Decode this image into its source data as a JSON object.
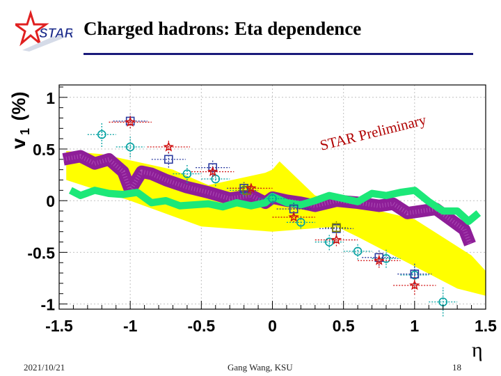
{
  "header": {
    "title": "Charged hadrons: Eta dependence",
    "logo_text": "STAR"
  },
  "footer": {
    "date": "2021/10/21",
    "author": "Gang Wang, KSU",
    "page": "18"
  },
  "colors": {
    "purple_band": "#8e1e98",
    "yellow_band": "#ffff00",
    "green_band": "#1ce878",
    "title_rule": "#1a1a7a"
  },
  "chart_data": {
    "type": "scatter",
    "xlabel": "η",
    "ylabel_main": "v",
    "ylabel_sub": "1",
    "ylabel_unit": "(%)",
    "watermark": "STAR Preliminary",
    "xlim": [
      -1.5,
      1.5
    ],
    "ylim": [
      -1.05,
      1.12
    ],
    "xticks": [
      -1.5,
      -1,
      -0.5,
      0,
      0.5,
      1,
      1.5
    ],
    "xtick_labels": [
      "-1.5",
      "-1",
      "-0.5",
      "0",
      "0.5",
      "1",
      "1.5"
    ],
    "yticks": [
      -1,
      -0.5,
      0,
      0.5,
      1
    ],
    "ytick_labels": [
      "-1",
      "-0.5",
      "0",
      "0.5",
      "1"
    ],
    "bands": [
      {
        "name": "yellow-band",
        "color": "#ffff00",
        "upper": [
          [
            -1.45,
            0.48
          ],
          [
            -1.2,
            0.45
          ],
          [
            -0.7,
            0.3
          ],
          [
            -0.45,
            0.15
          ],
          [
            -0.05,
            0.27
          ],
          [
            0.0,
            0.3
          ],
          [
            0.05,
            0.38
          ],
          [
            0.3,
            0.05
          ],
          [
            1.0,
            -0.18
          ],
          [
            1.4,
            -0.53
          ],
          [
            1.5,
            -0.68
          ]
        ],
        "lower": [
          [
            1.5,
            -0.92
          ],
          [
            1.3,
            -0.85
          ],
          [
            0.6,
            -0.35
          ],
          [
            0.45,
            -0.25
          ],
          [
            0.0,
            -0.3
          ],
          [
            -0.5,
            -0.25
          ],
          [
            -1.0,
            0.0
          ],
          [
            -1.45,
            0.2
          ]
        ]
      },
      {
        "name": "purple-band",
        "color": "#8e1e98",
        "x": [
          -1.47,
          -1.35,
          -1.25,
          -1.15,
          -1.05,
          -1.0,
          -0.92,
          -0.85,
          -0.75,
          -0.6,
          -0.45,
          -0.3,
          -0.15,
          -0.05,
          0.0,
          0.1,
          0.2,
          0.3,
          0.45,
          0.6,
          0.75,
          0.85,
          0.95,
          1.05,
          1.15,
          1.25,
          1.35,
          1.39
        ],
        "y": [
          0.4,
          0.43,
          0.36,
          0.4,
          0.28,
          0.1,
          0.28,
          0.26,
          0.2,
          0.13,
          0.08,
          0.02,
          0.05,
          -0.02,
          0.03,
          0.0,
          -0.02,
          -0.05,
          0.0,
          -0.02,
          -0.05,
          -0.03,
          -0.12,
          -0.1,
          -0.08,
          -0.18,
          -0.28,
          -0.42
        ],
        "half_width": 0.06
      },
      {
        "name": "green-band",
        "color": "#1ce878",
        "x": [
          -1.42,
          -1.35,
          -1.25,
          -1.15,
          -1.05,
          -0.95,
          -0.85,
          -0.75,
          -0.65,
          -0.55,
          -0.45,
          -0.35,
          -0.25,
          -0.15,
          -0.05,
          0.0,
          0.1,
          0.2,
          0.3,
          0.4,
          0.5,
          0.6,
          0.7,
          0.8,
          0.9,
          1.0,
          1.1,
          1.2,
          1.3,
          1.38,
          1.45
        ],
        "y": [
          0.1,
          0.05,
          0.1,
          0.07,
          0.06,
          0.08,
          -0.02,
          0.0,
          -0.05,
          -0.04,
          -0.03,
          -0.06,
          -0.02,
          -0.05,
          -0.02,
          0.04,
          -0.02,
          -0.04,
          0.0,
          0.05,
          0.02,
          -0.01,
          0.07,
          0.05,
          0.08,
          0.1,
          -0.01,
          -0.1,
          -0.1,
          -0.2,
          -0.12
        ],
        "half_width": 0.035
      }
    ],
    "series": [
      {
        "name": "circles",
        "marker": "circle",
        "color": "#00a0a0",
        "points": [
          {
            "x": -1.2,
            "y": 0.64,
            "ex": 0.1,
            "ey": 0.12
          },
          {
            "x": -1.0,
            "y": 0.52,
            "ex": 0.1,
            "ey": 0.1
          },
          {
            "x": -0.6,
            "y": 0.26,
            "ex": 0.1,
            "ey": 0.09
          },
          {
            "x": -0.4,
            "y": 0.21,
            "ex": 0.1,
            "ey": 0.07
          },
          {
            "x": -0.2,
            "y": 0.1,
            "ex": 0.1,
            "ey": 0.06
          },
          {
            "x": 0.0,
            "y": 0.02,
            "ex": 0.1,
            "ey": 0.06
          },
          {
            "x": 0.2,
            "y": -0.21,
            "ex": 0.1,
            "ey": 0.06
          },
          {
            "x": 0.4,
            "y": -0.4,
            "ex": 0.1,
            "ey": 0.08
          },
          {
            "x": 0.6,
            "y": -0.49,
            "ex": 0.1,
            "ey": 0.08
          },
          {
            "x": 0.8,
            "y": -0.56,
            "ex": 0.1,
            "ey": 0.09
          },
          {
            "x": 1.0,
            "y": -0.72,
            "ex": 0.1,
            "ey": 0.12
          },
          {
            "x": 1.2,
            "y": -0.98,
            "ex": 0.1,
            "ey": 0.14
          }
        ]
      },
      {
        "name": "squares-blue",
        "marker": "square",
        "color": "#2a3aa0",
        "points": [
          {
            "x": -1.0,
            "y": 0.77,
            "ex": 0.12,
            "ey": 0.07
          },
          {
            "x": -0.73,
            "y": 0.4,
            "ex": 0.12,
            "ey": 0.08
          },
          {
            "x": -0.42,
            "y": 0.32,
            "ex": 0.12,
            "ey": 0.08
          },
          {
            "x": -0.2,
            "y": 0.12,
            "ex": 0.12,
            "ey": 0.06
          },
          {
            "x": 0.15,
            "y": -0.08,
            "ex": 0.12,
            "ey": 0.06
          },
          {
            "x": 0.45,
            "y": -0.27,
            "ex": 0.12,
            "ey": 0.07
          },
          {
            "x": 0.75,
            "y": -0.55,
            "ex": 0.12,
            "ey": 0.08
          },
          {
            "x": 1.0,
            "y": -0.71,
            "ex": 0.12,
            "ey": 0.1
          }
        ]
      },
      {
        "name": "squares-olive",
        "marker": "square",
        "color": "#808000",
        "points": [
          {
            "x": -0.18,
            "y": 0.1,
            "ex": 0.08,
            "ey": 0.06
          },
          {
            "x": 0.45,
            "y": -0.26,
            "ex": 0.08,
            "ey": 0.06
          }
        ]
      },
      {
        "name": "stars-red",
        "marker": "star",
        "color": "#d01010",
        "points": [
          {
            "x": -1.0,
            "y": 0.76,
            "ex": 0.15,
            "ey": 0.06
          },
          {
            "x": -0.73,
            "y": 0.52,
            "ex": 0.15,
            "ey": 0.06
          },
          {
            "x": -0.42,
            "y": 0.28,
            "ex": 0.15,
            "ey": 0.05
          },
          {
            "x": -0.15,
            "y": 0.12,
            "ex": 0.15,
            "ey": 0.05
          },
          {
            "x": 0.15,
            "y": -0.16,
            "ex": 0.15,
            "ey": 0.05
          },
          {
            "x": 0.45,
            "y": -0.38,
            "ex": 0.15,
            "ey": 0.06
          },
          {
            "x": 0.75,
            "y": -0.58,
            "ex": 0.15,
            "ey": 0.07
          },
          {
            "x": 1.0,
            "y": -0.82,
            "ex": 0.15,
            "ey": 0.09
          }
        ]
      }
    ]
  }
}
